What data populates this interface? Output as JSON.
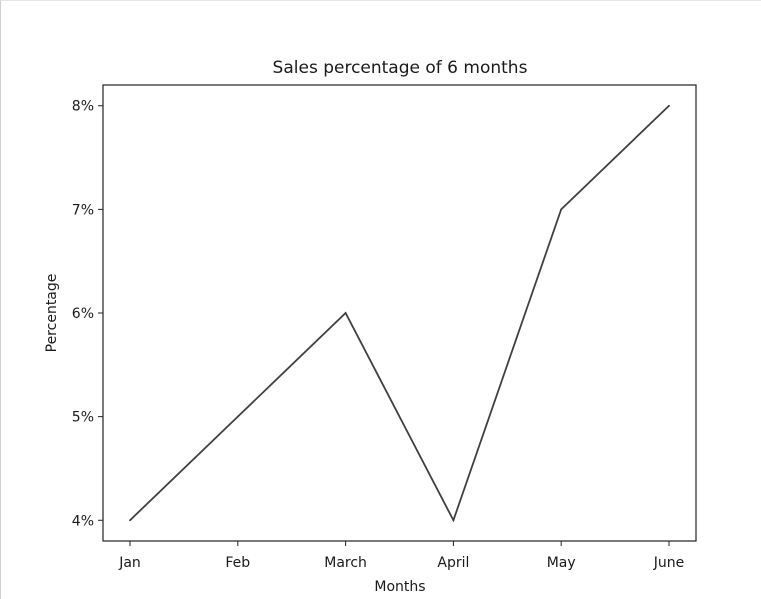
{
  "chart_data": {
    "type": "line",
    "title": "Sales percentage of 6 months",
    "xlabel": "Months",
    "ylabel": "Percentage",
    "categories": [
      "Jan",
      "Feb",
      "March",
      "April",
      "May",
      "June"
    ],
    "values": [
      4,
      5,
      6,
      4,
      7,
      8
    ],
    "ylim": [
      3.8,
      8.2
    ],
    "yticks": [
      4,
      5,
      6,
      7,
      8
    ],
    "ytick_labels": [
      "4%",
      "5%",
      "6%",
      "7%",
      "8%"
    ],
    "grid": false,
    "legend": "none",
    "line_color": "#404040"
  }
}
